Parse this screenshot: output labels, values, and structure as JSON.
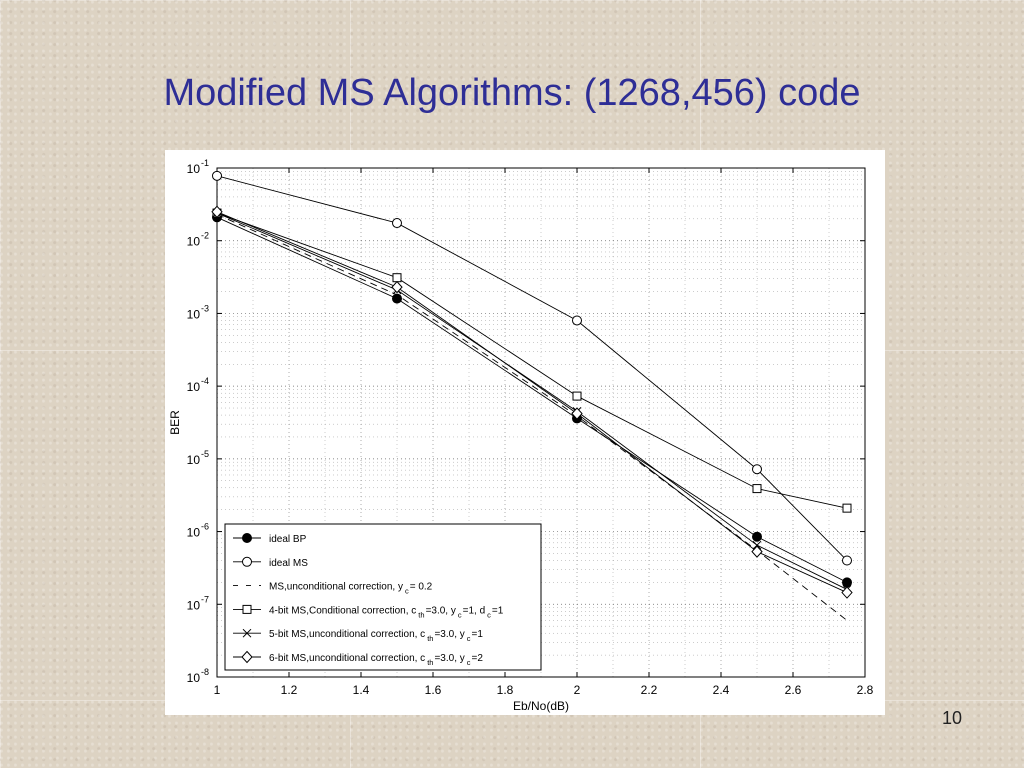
{
  "slide": {
    "title": "Modified MS Algorithms: (1268,456) code",
    "page_number": "10"
  },
  "chart_data": {
    "type": "line",
    "xlabel": "Eb/No(dB)",
    "ylabel": "BER",
    "xlim": [
      1,
      2.8
    ],
    "ylim": [
      1e-08,
      0.1
    ],
    "yscale": "log",
    "xticks": [
      "1",
      "1.2",
      "1.4",
      "1.6",
      "1.8",
      "2",
      "2.2",
      "2.4",
      "2.6",
      "2.8"
    ],
    "yticks": [
      {
        "base": "10",
        "exp": "-1"
      },
      {
        "base": "10",
        "exp": "-2"
      },
      {
        "base": "10",
        "exp": "-3"
      },
      {
        "base": "10",
        "exp": "-4"
      },
      {
        "base": "10",
        "exp": "-5"
      },
      {
        "base": "10",
        "exp": "-6"
      },
      {
        "base": "10",
        "exp": "-7"
      },
      {
        "base": "10",
        "exp": "-8"
      }
    ],
    "grid": true,
    "legend_position": "bottom-left",
    "series": [
      {
        "legend": [
          {
            "t": "ideal BP"
          }
        ],
        "marker": "filled-circle",
        "dash": "",
        "x": [
          1,
          1.5,
          2,
          2.5,
          2.75
        ],
        "y": [
          0.021,
          0.0016,
          3.6e-05,
          8.5e-07,
          2e-07
        ]
      },
      {
        "legend": [
          {
            "t": "ideal MS"
          }
        ],
        "marker": "circle",
        "dash": "",
        "x": [
          1,
          1.5,
          2,
          2.5,
          2.75
        ],
        "y": [
          0.078,
          0.0175,
          0.0008,
          7.2e-06,
          4e-07
        ]
      },
      {
        "legend": [
          {
            "t": "MS,unconditional correction, y"
          },
          {
            "t": "c",
            "sub": true
          },
          {
            "t": "= 0.2"
          }
        ],
        "marker": "none",
        "dash": "7,5",
        "x": [
          1,
          1.5,
          2,
          2.5,
          2.75
        ],
        "y": [
          0.023,
          0.0018,
          3.9e-05,
          5.5e-07,
          6e-08
        ]
      },
      {
        "legend": [
          {
            "t": "4-bit MS,Conditional correction, c"
          },
          {
            "t": "th",
            "sub": true
          },
          {
            "t": "=3.0, y"
          },
          {
            "t": "c",
            "sub": true
          },
          {
            "t": "=1, d"
          },
          {
            "t": "c",
            "sub": true
          },
          {
            "t": "=1"
          }
        ],
        "marker": "square",
        "dash": "",
        "x": [
          1,
          1.5,
          2,
          2.5,
          2.75
        ],
        "y": [
          0.024,
          0.0031,
          7.3e-05,
          3.9e-06,
          2.1e-06
        ]
      },
      {
        "legend": [
          {
            "t": "5-bit MS,unconditional correction, c"
          },
          {
            "t": "th",
            "sub": true
          },
          {
            "t": "=3.0, y"
          },
          {
            "t": "c",
            "sub": true
          },
          {
            "t": "=1"
          }
        ],
        "marker": "x",
        "dash": "",
        "x": [
          1,
          1.5,
          2,
          2.5,
          2.75
        ],
        "y": [
          0.024,
          0.0021,
          4.5e-05,
          6.5e-07,
          1.6e-07
        ]
      },
      {
        "legend": [
          {
            "t": "6-bit MS,unconditional correction, c"
          },
          {
            "t": "th",
            "sub": true
          },
          {
            "t": "=3.0, y"
          },
          {
            "t": "c",
            "sub": true
          },
          {
            "t": "=2"
          }
        ],
        "marker": "diamond",
        "dash": "",
        "x": [
          1,
          1.5,
          2,
          2.5,
          2.75
        ],
        "y": [
          0.025,
          0.0023,
          4.2e-05,
          5.3e-07,
          1.45e-07
        ]
      }
    ]
  }
}
